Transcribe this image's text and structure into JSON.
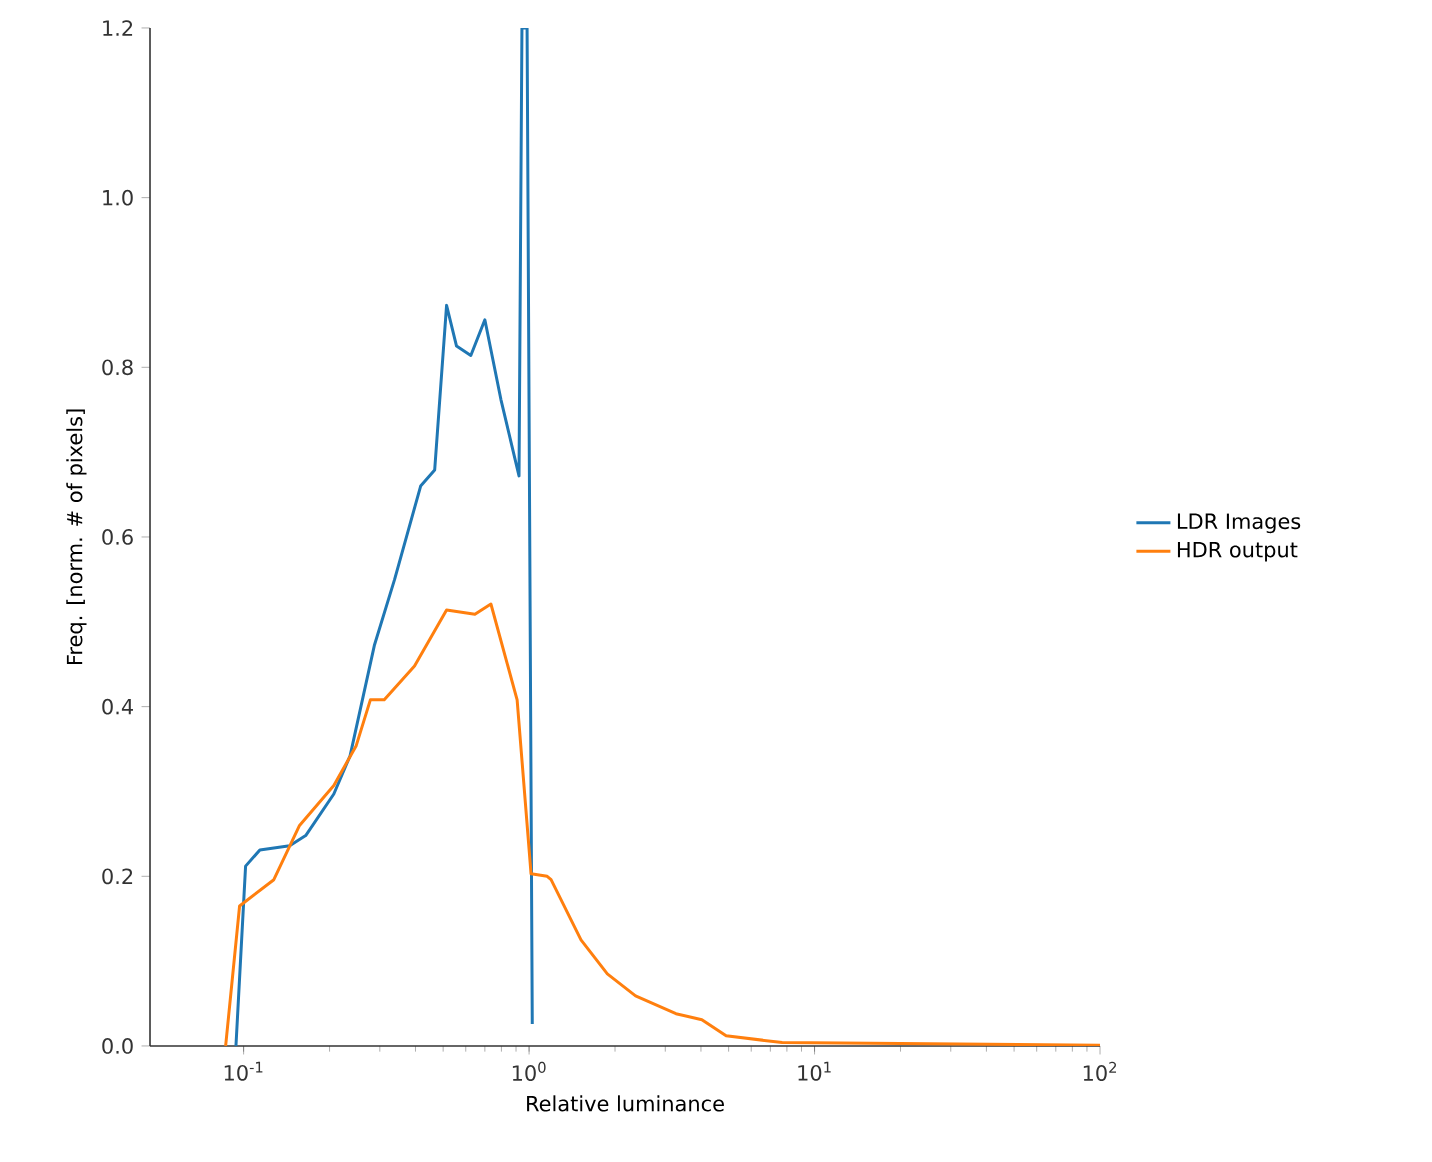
{
  "chart_data": {
    "type": "line",
    "xlabel": "Relative luminance",
    "ylabel": "Freq. [norm. # of pixels]",
    "log": "x",
    "xlim": [
      0.047,
      100
    ],
    "ylim": [
      0,
      1.2
    ],
    "xticks": [
      {
        "value": 0.1,
        "label": "10$^{-1}$"
      },
      {
        "value": 1,
        "label": "10$^{0}$"
      },
      {
        "value": 10,
        "label": "10$^{1}$"
      },
      {
        "value": 100,
        "label": "10$^{2}$"
      }
    ],
    "yticks": [
      {
        "value": 0,
        "label": "0.0"
      },
      0.2,
      0.4,
      0.6,
      0.8,
      {
        "value": 1.0,
        "label": "1.0"
      },
      1.2
    ],
    "grid": false,
    "legend": "right",
    "marker": "none",
    "line_style": "solid",
    "series": [
      {
        "name": "LDR Images",
        "color": "#1f77b4",
        "x": [
          0.094,
          0.1016,
          0.114,
          0.145,
          0.165,
          0.207,
          0.236,
          0.287,
          0.338,
          0.417,
          0.467,
          0.514,
          0.557,
          0.625,
          0.7,
          0.797,
          0.922,
          0.944,
          0.984,
          1.026
        ],
        "values": [
          0,
          0.212,
          0.231,
          0.236,
          0.248,
          0.297,
          0.342,
          0.472,
          0.55,
          0.66,
          0.679,
          0.873,
          0.825,
          0.814,
          0.856,
          0.762,
          0.672,
          1.2,
          1.2,
          0.026
        ]
      },
      {
        "name": "HDR output",
        "color": "#ff7f0e",
        "x": [
          0.0865,
          0.0968,
          0.1276,
          0.157,
          0.207,
          0.248,
          0.278,
          0.311,
          0.397,
          0.514,
          0.646,
          0.735,
          0.908,
          1.016,
          1.157,
          1.194,
          1.52,
          1.88,
          2.36,
          3.27,
          4.03,
          4.9,
          7.7,
          100
        ],
        "values": [
          0,
          0.165,
          0.196,
          0.26,
          0.307,
          0.354,
          0.408,
          0.408,
          0.448,
          0.514,
          0.509,
          0.521,
          0.408,
          0.203,
          0.2,
          0.196,
          0.125,
          0.085,
          0.059,
          0.038,
          0.031,
          0.012,
          0.004,
          0.001
        ]
      }
    ]
  }
}
